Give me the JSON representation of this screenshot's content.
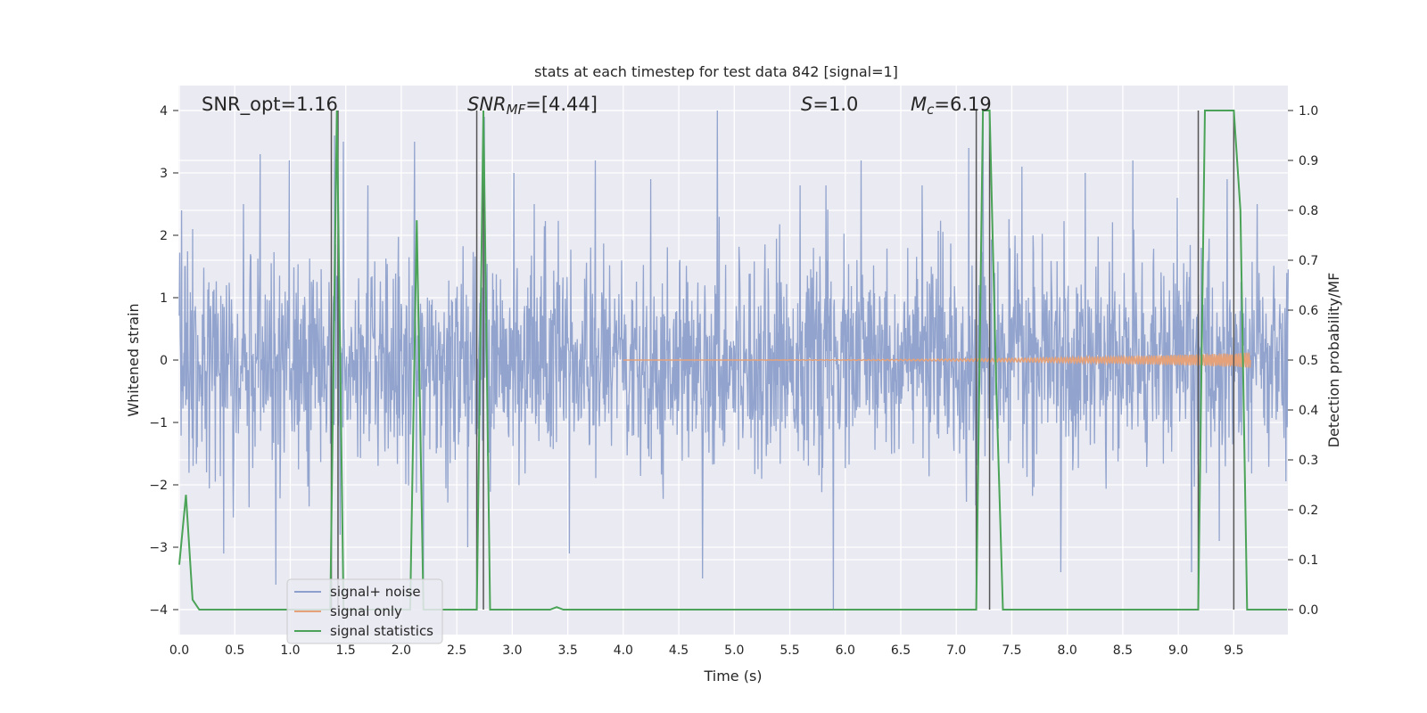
{
  "chart_data": {
    "type": "line",
    "title": "stats at each timestep for test data 842 [signal=1]",
    "xlabel": "Time (s)",
    "ylabel": "Whitened strain",
    "y2label": "Detection probability/MF",
    "xlim": [
      0.0,
      10.0
    ],
    "ylim": [
      -4.4,
      4.4
    ],
    "y2lim": [
      -0.05,
      1.05
    ],
    "xticks": [
      0.0,
      0.5,
      1.0,
      1.5,
      2.0,
      2.5,
      3.0,
      3.5,
      4.0,
      4.5,
      5.0,
      5.5,
      6.0,
      6.5,
      7.0,
      7.5,
      8.0,
      8.5,
      9.0,
      9.5
    ],
    "xtick_labels": [
      "0.0",
      "0.5",
      "1.0",
      "1.5",
      "2.0",
      "2.5",
      "3.0",
      "3.5",
      "4.0",
      "4.5",
      "5.0",
      "5.5",
      "6.0",
      "6.5",
      "7.0",
      "7.5",
      "8.0",
      "8.5",
      "9.0",
      "9.5"
    ],
    "yticks": [
      -4,
      -3,
      -2,
      -1,
      0,
      1,
      2,
      3,
      4
    ],
    "ytick_labels": [
      "−4",
      "−3",
      "−2",
      "−1",
      "0",
      "1",
      "2",
      "3",
      "4"
    ],
    "y2ticks": [
      0.0,
      0.1,
      0.2,
      0.3,
      0.4,
      0.5,
      0.6,
      0.7,
      0.8,
      0.9,
      1.0
    ],
    "y2tick_labels": [
      "0.0",
      "0.1",
      "0.2",
      "0.3",
      "0.4",
      "0.5",
      "0.6",
      "0.7",
      "0.8",
      "0.9",
      "1.0"
    ],
    "grid": true,
    "legend_position": "lower-left",
    "annotations": [
      {
        "text": "SNR_opt=1.16",
        "x": 0.2
      },
      {
        "text": "SNR_MF=[4.44]",
        "x": 2.6
      },
      {
        "text": "S=1.0",
        "x": 5.6
      },
      {
        "text": "M_c=6.19",
        "x": 6.6
      }
    ],
    "vlines": [
      1.37,
      1.43,
      2.68,
      2.74,
      7.18,
      7.3,
      9.18,
      9.5
    ],
    "series": [
      {
        "name": "signal+ noise",
        "color": "#8da0cb",
        "axis": "left",
        "noise_std": 0.8,
        "peaks": [
          {
            "x": 0.02,
            "y": 2.4
          },
          {
            "x": 0.12,
            "y": 2.1
          },
          {
            "x": 0.4,
            "y": -3.1
          },
          {
            "x": 0.58,
            "y": 2.5
          },
          {
            "x": 0.73,
            "y": 3.3
          },
          {
            "x": 0.99,
            "y": 3.2
          },
          {
            "x": 0.87,
            "y": -3.6
          },
          {
            "x": 1.4,
            "y": 3.6
          },
          {
            "x": 1.48,
            "y": 3.5
          },
          {
            "x": 1.45,
            "y": -2.8
          },
          {
            "x": 1.7,
            "y": 2.8
          },
          {
            "x": 2.12,
            "y": 3.5
          },
          {
            "x": 2.2,
            "y": -4.0
          },
          {
            "x": 2.6,
            "y": -3.0
          },
          {
            "x": 2.75,
            "y": 3.9
          },
          {
            "x": 3.2,
            "y": 2.5
          },
          {
            "x": 3.52,
            "y": -3.1
          },
          {
            "x": 3.75,
            "y": 3.2
          },
          {
            "x": 4.25,
            "y": 2.9
          },
          {
            "x": 4.72,
            "y": -3.5
          },
          {
            "x": 4.85,
            "y": 4.0
          },
          {
            "x": 5.6,
            "y": 2.8
          },
          {
            "x": 5.9,
            "y": -4.0
          },
          {
            "x": 5.83,
            "y": 2.8
          },
          {
            "x": 6.15,
            "y": 3.2
          },
          {
            "x": 6.7,
            "y": 2.8
          },
          {
            "x": 7.12,
            "y": 3.4
          },
          {
            "x": 7.25,
            "y": 4.0
          },
          {
            "x": 7.6,
            "y": 3.1
          },
          {
            "x": 7.95,
            "y": -3.4
          },
          {
            "x": 8.17,
            "y": 3.0
          },
          {
            "x": 8.6,
            "y": 3.2
          },
          {
            "x": 9.0,
            "y": 2.6
          },
          {
            "x": 9.13,
            "y": -3.4
          },
          {
            "x": 9.45,
            "y": 2.9
          },
          {
            "x": 9.72,
            "y": 2.5
          },
          {
            "x": 9.38,
            "y": -2.9
          }
        ]
      },
      {
        "name": "signal only",
        "color": "#e5a27a",
        "axis": "left",
        "chirp": {
          "start": 4.0,
          "end": 9.65,
          "max_amplitude": 0.12
        }
      },
      {
        "name": "signal statistics",
        "color": "#4aa357",
        "axis": "right",
        "x": [
          0.0,
          0.06,
          0.12,
          0.18,
          0.24,
          1.3,
          1.36,
          1.42,
          1.48,
          1.54,
          2.02,
          2.08,
          2.14,
          2.2,
          2.26,
          2.62,
          2.68,
          2.74,
          2.8,
          2.86,
          3.34,
          3.4,
          3.46,
          7.18,
          7.24,
          7.3,
          7.36,
          7.42,
          9.18,
          9.24,
          9.3,
          9.5,
          9.56,
          9.62,
          9.68,
          9.98
        ],
        "y": [
          0.09,
          0.23,
          0.02,
          0.0,
          0.0,
          0.0,
          0.0,
          1.0,
          0.0,
          0.0,
          0.0,
          0.0,
          0.78,
          0.0,
          0.0,
          0.0,
          0.0,
          1.0,
          0.0,
          0.0,
          0.0,
          0.005,
          0.0,
          0.0,
          1.0,
          1.0,
          0.45,
          0.0,
          0.0,
          1.0,
          1.0,
          1.0,
          0.8,
          0.0,
          0.0,
          0.0
        ]
      }
    ]
  }
}
